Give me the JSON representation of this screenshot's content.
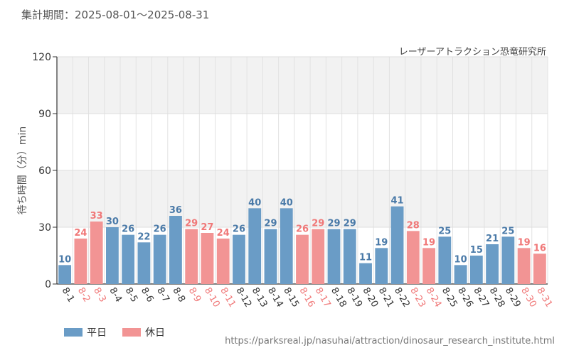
{
  "header": {
    "period_label": "集計期間：2025-08-01～2025-08-31",
    "source": "レーザーアトラクション恐竜研究所"
  },
  "footer": {
    "url": "https://parksreal.jp/nasuhai/attraction/dinosaur_research_institute.html"
  },
  "colors": {
    "weekday": "#6a9cc6",
    "holiday": "#f29494",
    "weekday_text": "#4a7aa8",
    "holiday_text": "#f07878",
    "band": "#f2f2f2"
  },
  "chart_data": {
    "type": "bar",
    "ylabel": "待ち時間（分）min",
    "ylim": [
      0,
      120
    ],
    "yticks": [
      0,
      30,
      60,
      90,
      120
    ],
    "grid": true,
    "legend_position": "bottom-left",
    "series": [
      {
        "name": "平日",
        "color": "#6a9cc6"
      },
      {
        "name": "休日",
        "color": "#f29494"
      }
    ],
    "categories": [
      "8-1",
      "8-2",
      "8-3",
      "8-4",
      "8-5",
      "8-6",
      "8-7",
      "8-8",
      "8-9",
      "8-10",
      "8-11",
      "8-12",
      "8-13",
      "8-14",
      "8-15",
      "8-16",
      "8-17",
      "8-18",
      "8-19",
      "8-20",
      "8-21",
      "8-22",
      "8-23",
      "8-24",
      "8-25",
      "8-26",
      "8-27",
      "8-28",
      "8-29",
      "8-30",
      "8-31"
    ],
    "values": [
      10,
      24,
      33,
      30,
      26,
      22,
      26,
      36,
      29,
      27,
      24,
      26,
      40,
      29,
      40,
      26,
      29,
      29,
      29,
      11,
      19,
      41,
      28,
      19,
      25,
      10,
      15,
      21,
      25,
      19,
      16
    ],
    "day_type": [
      "平日",
      "休日",
      "休日",
      "平日",
      "平日",
      "平日",
      "平日",
      "平日",
      "休日",
      "休日",
      "休日",
      "平日",
      "平日",
      "平日",
      "平日",
      "休日",
      "休日",
      "平日",
      "平日",
      "平日",
      "平日",
      "平日",
      "休日",
      "休日",
      "平日",
      "平日",
      "平日",
      "平日",
      "平日",
      "休日",
      "休日"
    ]
  }
}
